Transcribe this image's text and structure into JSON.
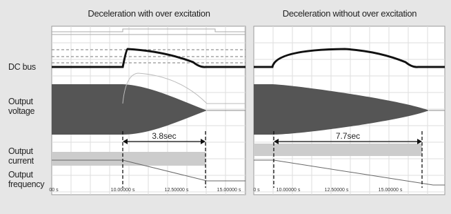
{
  "panels": [
    {
      "title": "Deceleration with over excitation",
      "duration": "3.8sec",
      "time_labels": [
        "00 s",
        "10.00000 s",
        "12.50000 s",
        "15.00000 s"
      ]
    },
    {
      "title": "Deceleration without over excitation",
      "duration": "7.7sec",
      "time_labels": [
        "0 s",
        "10.00000 s",
        "12.50000 s",
        "15.00000 s"
      ]
    }
  ],
  "signal_labels": [
    "DC bus",
    "Output voltage",
    "Output current",
    "Output frequency"
  ]
}
